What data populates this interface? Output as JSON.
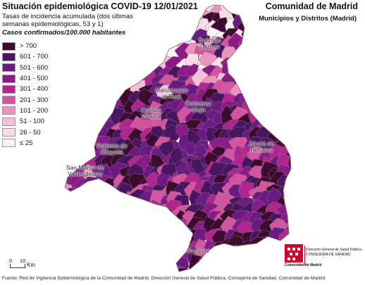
{
  "header": {
    "title": "Situación epidemiológica COVID-19  12/01/2021",
    "subtitle": "Tasas de incidencia acumulada (dos últimas semanas epidemiológicas, 53 y 1)",
    "cases_label": "Casos confirmados/100.000 habitantes",
    "region": "Comunidad de Madrid",
    "region_sub": "Municipios y Distritos (Madrid)"
  },
  "legend": [
    {
      "label": "> 700",
      "color": "#3d0a30"
    },
    {
      "label": "601 - 700",
      "color": "#4a1560"
    },
    {
      "label": "501 - 600",
      "color": "#6a1a80"
    },
    {
      "label": "401 - 500",
      "color": "#8a1a86"
    },
    {
      "label": "301 - 400",
      "color": "#b0258e"
    },
    {
      "label": "201 - 300",
      "color": "#d4559f"
    },
    {
      "label": "101 - 200",
      "color": "#ec93bd"
    },
    {
      "label": "51 - 100",
      "color": "#f6c1d6"
    },
    {
      "label": "26 - 50",
      "color": "#fbdde7"
    },
    {
      "label": "≤ 25",
      "color": "#fdf1f3"
    }
  ],
  "places": [
    {
      "name": "Buitrago\nLozoya"
    },
    {
      "name": "Manzanares\nel Real"
    },
    {
      "name": "Colmenar\nViejo"
    },
    {
      "name": "Collado\nVillalba"
    },
    {
      "name": "Robledo de\nChavela"
    },
    {
      "name": "San Martín de\nValdeiglesias"
    },
    {
      "name": "Alcalá de\nHenares"
    },
    {
      "name": "Aranjuez"
    }
  ],
  "scale": {
    "zero": "0",
    "ten": "10",
    "unit": "Km"
  },
  "logo": {
    "name": "Comunidad de Madrid",
    "dept_line1": "Dirección General de Salud Pública",
    "dept_line2": "CONSEJERÍA DE SANIDAD"
  },
  "footer": "Fuente: Red de Vigilancia Epidemiológica de la Comunidad de Madrid, Dirección General de Salud Pública, Consejería de Sanidad, Comunidad de Madrid"
}
